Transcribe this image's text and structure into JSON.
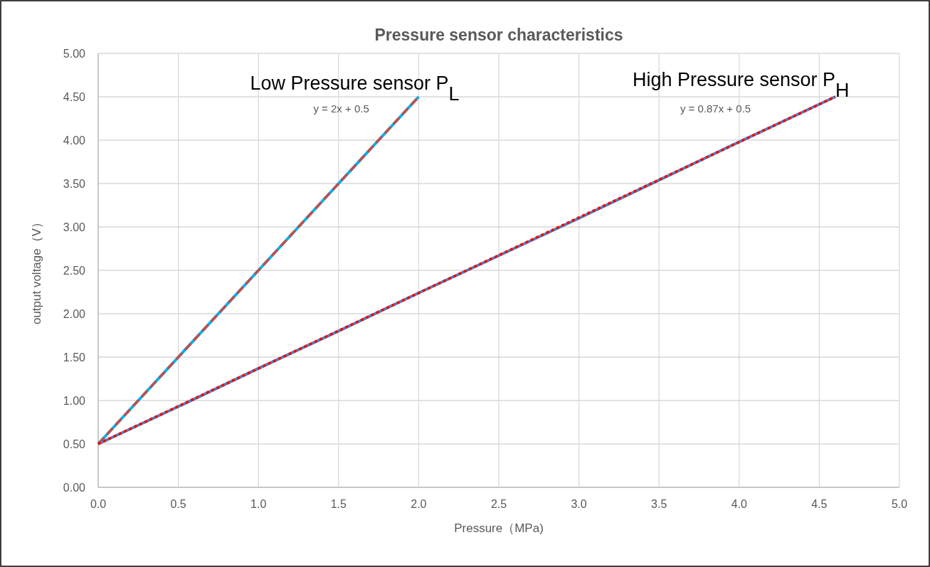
{
  "chart_data": {
    "type": "line",
    "title": "Pressure sensor characteristics",
    "xlabel": "Pressure（MPa)",
    "ylabel": "output voltage（V）",
    "series": [
      {
        "color": "#00b0f0",
        "line_style": "solid",
        "x": [
          0,
          0.5,
          1.0,
          1.5,
          2.0
        ],
        "values": [
          0.5,
          1.5,
          2.5,
          3.5,
          4.5
        ]
      },
      {
        "color": "#c0504d",
        "line_style": "dashed",
        "x": [
          0,
          2.0
        ],
        "values": [
          0.5,
          4.5
        ]
      },
      {
        "color": "#4f81bd",
        "line_style": "solid",
        "x": [
          0,
          0.5,
          1.0,
          1.5,
          2.0,
          2.5,
          3.0,
          3.5,
          4.0,
          4.6
        ],
        "values": [
          0.5,
          0.93,
          1.37,
          1.8,
          2.24,
          2.67,
          3.1,
          3.54,
          3.98,
          4.5
        ]
      },
      {
        "color": "#ff0000",
        "line_style": "dotted",
        "x": [
          0,
          4.6
        ],
        "values": [
          0.5,
          4.5
        ]
      }
    ],
    "annotations": [
      "Low Pressure sensor  P$_{L}$",
      "y = 2x + 0.5",
      "High Pressure sensor P$_{H}$",
      "y = 0.87x + 0.5"
    ],
    "xlim": [
      0,
      5.0
    ],
    "xticks": [
      {
        "value": 0,
        "label": "0.0"
      },
      0.5,
      {
        "value": 1,
        "label": "1.0"
      },
      1.5,
      {
        "value": 2,
        "label": "2.0"
      },
      2.5,
      {
        "value": 3,
        "label": "3.0"
      },
      3.5,
      {
        "value": 4,
        "label": "4.0"
      },
      4.5,
      {
        "value": 5,
        "label": "5.0"
      }
    ],
    "ylim": [
      0,
      5.0
    ],
    "yticks": [
      {
        "value": 0,
        "label": "0.00"
      },
      {
        "value": 0.5,
        "label": "0.50"
      },
      {
        "value": 1,
        "label": "1.00"
      },
      {
        "value": 1.5,
        "label": "1.50"
      },
      {
        "value": 2,
        "label": "2.00"
      },
      {
        "value": 2.5,
        "label": "2.50"
      },
      {
        "value": 3,
        "label": "3.00"
      },
      {
        "value": 3.5,
        "label": "3.50"
      },
      {
        "value": 4,
        "label": "4.00"
      },
      {
        "value": 4.5,
        "label": "4.50"
      },
      {
        "value": 5,
        "label": "5.00"
      }
    ],
    "grid": true,
    "marker": "none"
  }
}
